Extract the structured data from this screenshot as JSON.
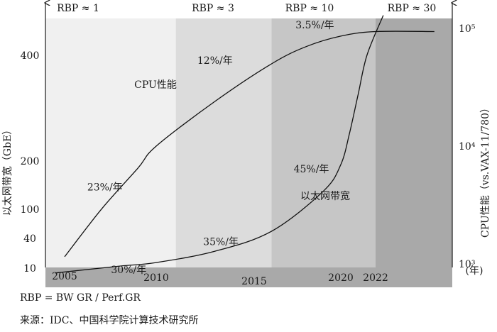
{
  "chart_data": {
    "type": "line",
    "x_ticks": [
      "2005",
      "2010",
      "2015",
      "2020",
      "2022"
    ],
    "x_unit_label": "(年)",
    "left_axis": {
      "label": "以太网带宽（GbE）",
      "tick_labels": [
        "10",
        "40",
        "100",
        "200",
        "400"
      ]
    },
    "right_axis": {
      "label": "CPU性能（vs.VAX-11/780）",
      "tick_labels": [
        "10³",
        "10⁴",
        "10⁵"
      ]
    },
    "regions": [
      {
        "label": "RBP ≈ 1",
        "x_range": [
          2004,
          2011
        ],
        "color": "#f0f0f0"
      },
      {
        "label": "RBP ≈ 3",
        "x_range": [
          2011,
          2016
        ],
        "color": "#dcdcdc"
      },
      {
        "label": "RBP ≈ 10",
        "x_range": [
          2016,
          2022
        ],
        "color": "#c6c6c6"
      },
      {
        "label": "RBP ≈ 30",
        "x_range": [
          2022,
          2025
        ],
        "color": "#a9a9a9"
      }
    ],
    "series": [
      {
        "name": "CPU性能",
        "axis": "right",
        "points": [
          [
            2005,
            1150
          ],
          [
            2007,
            2900
          ],
          [
            2009,
            6500
          ],
          [
            2010,
            10000
          ],
          [
            2013,
            24000
          ],
          [
            2016,
            50000
          ],
          [
            2018,
            70000
          ],
          [
            2020,
            86000
          ],
          [
            2022,
            94000
          ],
          [
            2024.3,
            94000
          ]
        ],
        "annotations": [
          {
            "text": "23%/年",
            "x": 2007.2,
            "y": 4200
          },
          {
            "text": "12%/年",
            "x": 2013.0,
            "y": 50000
          },
          {
            "text": "3.5%/年",
            "x": 2018.5,
            "y": 100000
          }
        ]
      },
      {
        "name": "以太网带宽",
        "axis": "left",
        "points": [
          [
            2004.5,
            8
          ],
          [
            2008,
            11
          ],
          [
            2010,
            13
          ],
          [
            2013,
            22
          ],
          [
            2016,
            50
          ],
          [
            2019,
            130
          ],
          [
            2020,
            190
          ],
          [
            2020.5,
            240
          ],
          [
            2021,
            310
          ],
          [
            2021.5,
            400
          ],
          [
            2022.3,
            520
          ]
        ],
        "annotations": [
          {
            "text": "30%/年",
            "x": 2008.5,
            "y": 8
          },
          {
            "text": "35%/年",
            "x": 2013.3,
            "y": 29
          },
          {
            "text": "45%/年",
            "x": 2018.3,
            "y": 170
          }
        ]
      }
    ],
    "note": "RBP = BW GR / Perf.GR",
    "source": "来源：IDC、中国科学院计算技术研究所"
  }
}
